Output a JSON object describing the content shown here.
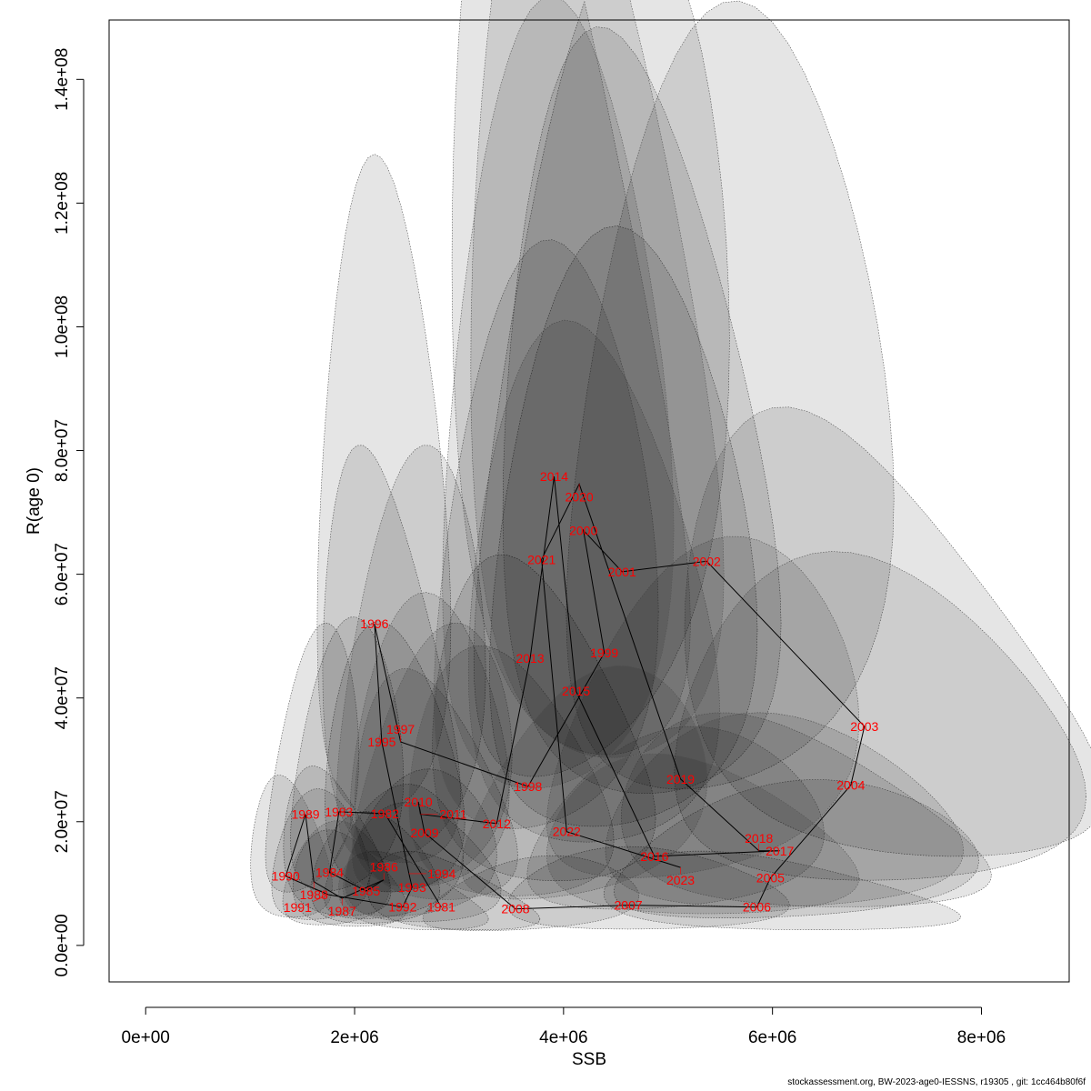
{
  "chart_data": {
    "type": "scatter",
    "title": "",
    "xlabel": "SSB",
    "ylabel": "R(age 0)",
    "xlim": [
      -350000,
      8840000
    ],
    "ylim": [
      -5900000,
      149600000
    ],
    "xticks": [
      0,
      2000000,
      4000000,
      6000000,
      8000000
    ],
    "xtick_labels": [
      "0e+00",
      "2e+06",
      "4e+06",
      "6e+06",
      "8e+06"
    ],
    "yticks": [
      0,
      20000000,
      40000000,
      60000000,
      80000000,
      100000000,
      120000000,
      140000000
    ],
    "ytick_labels": [
      "0.0e+00",
      "2.0e+07",
      "4.0e+07",
      "6.0e+07",
      "8.0e+07",
      "1.0e+08",
      "1.2e+08",
      "1.4e+08"
    ],
    "grid": false,
    "connect_points": true,
    "label_color": "#ff0000",
    "ellipse_fill": "#000000",
    "ellipse_sd_log": {
      "ssb": 0.16,
      "r": 0.5,
      "scale": 1.8
    },
    "points": [
      {
        "year": "1981",
        "ssb": 2830000,
        "r": 6200000
      },
      {
        "year": "1982",
        "ssb": 2290000,
        "r": 21300000
      },
      {
        "year": "1983",
        "ssb": 1850000,
        "r": 21600000
      },
      {
        "year": "1984",
        "ssb": 1760000,
        "r": 11800000
      },
      {
        "year": "1985",
        "ssb": 2110000,
        "r": 8800000
      },
      {
        "year": "1986",
        "ssb": 2280000,
        "r": 10600000
      },
      {
        "year": "1987",
        "ssb": 1880000,
        "r": 7600000
      },
      {
        "year": "1988",
        "ssb": 1610000,
        "r": 10300000
      },
      {
        "year": "1989",
        "ssb": 1530000,
        "r": 21200000
      },
      {
        "year": "1990",
        "ssb": 1340000,
        "r": 11200000
      },
      {
        "year": "1991",
        "ssb": 1750000,
        "r": 8200000
      },
      {
        "year": "1992",
        "ssb": 2460000,
        "r": 6200000
      },
      {
        "year": "1993",
        "ssb": 2550000,
        "r": 9400000
      },
      {
        "year": "1994",
        "ssb": 2520000,
        "r": 11600000
      },
      {
        "year": "1995",
        "ssb": 2260000,
        "r": 32900000
      },
      {
        "year": "1996",
        "ssb": 2190000,
        "r": 52000000
      },
      {
        "year": "1997",
        "ssb": 2440000,
        "r": 32900000
      },
      {
        "year": "1998",
        "ssb": 3660000,
        "r": 25700000
      },
      {
        "year": "1999",
        "ssb": 4390000,
        "r": 47300000
      },
      {
        "year": "2000",
        "ssb": 4190000,
        "r": 67100000
      },
      {
        "year": "2001",
        "ssb": 4560000,
        "r": 60400000
      },
      {
        "year": "2002",
        "ssb": 5370000,
        "r": 62100000
      },
      {
        "year": "2003",
        "ssb": 6880000,
        "r": 35400000
      },
      {
        "year": "2004",
        "ssb": 6750000,
        "r": 25900000
      },
      {
        "year": "2005",
        "ssb": 5980000,
        "r": 10900000
      },
      {
        "year": "2006",
        "ssb": 5850000,
        "r": 6200000
      },
      {
        "year": "2007",
        "ssb": 4620000,
        "r": 6500000
      },
      {
        "year": "2008",
        "ssb": 3540000,
        "r": 5900000
      },
      {
        "year": "2009",
        "ssb": 2670000,
        "r": 18200000
      },
      {
        "year": "2010",
        "ssb": 2610000,
        "r": 23200000
      },
      {
        "year": "2011",
        "ssb": 2630000,
        "r": 21200000
      },
      {
        "year": "2012",
        "ssb": 3360000,
        "r": 19700000
      },
      {
        "year": "2013",
        "ssb": 3680000,
        "r": 46400000
      },
      {
        "year": "2014",
        "ssb": 3910000,
        "r": 75800000
      },
      {
        "year": "2015",
        "ssb": 4120000,
        "r": 41100000
      },
      {
        "year": "2016",
        "ssb": 4870000,
        "r": 14400000
      },
      {
        "year": "2017",
        "ssb": 6070000,
        "r": 15300000
      },
      {
        "year": "2018",
        "ssb": 5870000,
        "r": 15300000
      },
      {
        "year": "2019",
        "ssb": 5120000,
        "r": 26900000
      },
      {
        "year": "2020",
        "ssb": 4150000,
        "r": 74600000
      },
      {
        "year": "2021",
        "ssb": 3790000,
        "r": 62400000
      },
      {
        "year": "2022",
        "ssb": 4030000,
        "r": 18400000
      },
      {
        "year": "2023",
        "ssb": 5120000,
        "r": 12600000
      }
    ]
  },
  "footer": "stockassessment.org, BW-2023-age0-IESSNS, r19305 , git: 1cc464b80f6f"
}
